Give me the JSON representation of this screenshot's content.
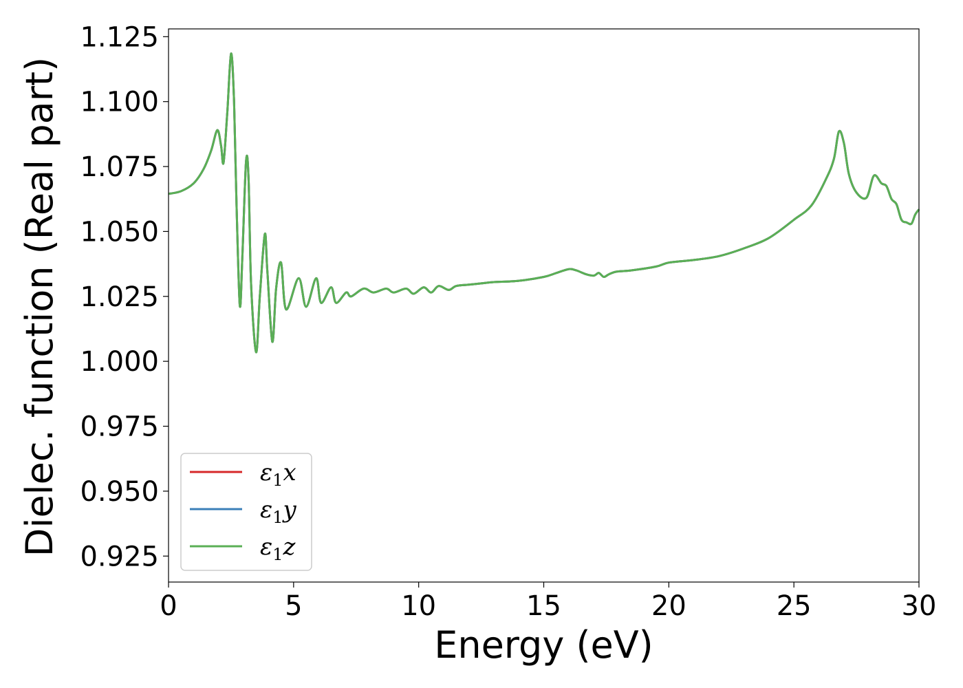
{
  "chart_data": {
    "type": "line",
    "xlabel": "Energy (eV)",
    "ylabel": "Dielec. function (Real part)",
    "xlim": [
      0,
      30
    ],
    "ylim": [
      0.915,
      1.128
    ],
    "xticks": [
      0,
      5,
      10,
      15,
      20,
      25,
      30
    ],
    "xtick_labels": [
      "0",
      "5",
      "10",
      "15",
      "20",
      "25",
      "30"
    ],
    "yticks": [
      0.925,
      0.95,
      0.975,
      1.0,
      1.025,
      1.05,
      1.075,
      1.1,
      1.125
    ],
    "ytick_labels": [
      "0.925",
      "0.950",
      "0.975",
      "1.000",
      "1.025",
      "1.050",
      "1.075",
      "1.100",
      "1.125"
    ],
    "grid": false,
    "legend_position": "lower-left",
    "legend": [
      {
        "symbol": "ε",
        "sub": "1",
        "axis": "x",
        "color": "#d62728"
      },
      {
        "symbol": "ε",
        "sub": "1",
        "axis": "y",
        "color": "#3a7fb8"
      },
      {
        "symbol": "ε",
        "sub": "1",
        "axis": "z",
        "color": "#5aaf55"
      }
    ],
    "x": [
      0,
      0.5,
      1.0,
      1.4,
      1.7,
      1.95,
      2.1,
      2.2,
      2.35,
      2.5,
      2.62,
      2.72,
      2.85,
      2.95,
      3.1,
      3.2,
      3.3,
      3.5,
      3.65,
      3.85,
      3.95,
      4.15,
      4.3,
      4.5,
      4.7,
      5.2,
      5.5,
      5.9,
      6.1,
      6.5,
      6.7,
      7.1,
      7.3,
      7.8,
      8.2,
      8.7,
      9.0,
      9.5,
      9.8,
      10.2,
      10.5,
      10.8,
      11.2,
      11.5,
      12.0,
      12.5,
      13.0,
      14.0,
      15.0,
      15.5,
      16.0,
      16.3,
      16.7,
      17.0,
      17.2,
      17.4,
      17.6,
      17.9,
      18.5,
      19.5,
      20.0,
      21.0,
      22.0,
      23.0,
      24.0,
      25.0,
      25.7,
      26.3,
      26.6,
      26.8,
      27.0,
      27.2,
      27.5,
      27.9,
      28.2,
      28.5,
      28.7,
      28.9,
      29.1,
      29.3,
      29.5,
      29.7,
      29.85,
      30.0
    ],
    "series": [
      {
        "name": "ε1x",
        "color": "#d62728",
        "values": [
          1.0645,
          1.0655,
          1.0685,
          1.074,
          1.081,
          1.089,
          1.083,
          1.0765,
          1.096,
          1.1185,
          1.1,
          1.06,
          1.0215,
          1.04,
          1.077,
          1.07,
          1.03,
          1.0035,
          1.025,
          1.049,
          1.035,
          1.0075,
          1.028,
          1.038,
          1.02,
          1.032,
          1.021,
          1.032,
          1.0225,
          1.0285,
          1.0225,
          1.0265,
          1.025,
          1.028,
          1.0265,
          1.028,
          1.0265,
          1.028,
          1.026,
          1.0285,
          1.0265,
          1.029,
          1.0275,
          1.029,
          1.0295,
          1.03,
          1.0305,
          1.031,
          1.0325,
          1.034,
          1.0355,
          1.035,
          1.0335,
          1.033,
          1.034,
          1.0325,
          1.0335,
          1.0345,
          1.035,
          1.0365,
          1.038,
          1.039,
          1.0405,
          1.0435,
          1.0475,
          1.0545,
          1.06,
          1.0705,
          1.078,
          1.0885,
          1.084,
          1.072,
          1.065,
          1.063,
          1.0715,
          1.0685,
          1.0675,
          1.0625,
          1.0605,
          1.0545,
          1.0535,
          1.053,
          1.0565,
          1.0585
        ]
      },
      {
        "name": "ε1y",
        "color": "#3a7fb8",
        "values": [
          1.0645,
          1.0655,
          1.0685,
          1.074,
          1.081,
          1.089,
          1.083,
          1.0765,
          1.096,
          1.1185,
          1.1,
          1.06,
          1.0215,
          1.04,
          1.077,
          1.07,
          1.03,
          1.0035,
          1.025,
          1.049,
          1.035,
          1.0075,
          1.028,
          1.038,
          1.02,
          1.032,
          1.021,
          1.032,
          1.0225,
          1.0285,
          1.0225,
          1.0265,
          1.025,
          1.028,
          1.0265,
          1.028,
          1.0265,
          1.028,
          1.026,
          1.0285,
          1.0265,
          1.029,
          1.0275,
          1.029,
          1.0295,
          1.03,
          1.0305,
          1.031,
          1.0325,
          1.034,
          1.0355,
          1.035,
          1.0335,
          1.033,
          1.034,
          1.0325,
          1.0335,
          1.0345,
          1.035,
          1.0365,
          1.038,
          1.039,
          1.0405,
          1.0435,
          1.0475,
          1.0545,
          1.06,
          1.0705,
          1.078,
          1.0885,
          1.084,
          1.072,
          1.065,
          1.063,
          1.0715,
          1.0685,
          1.0675,
          1.0625,
          1.0605,
          1.0545,
          1.0535,
          1.053,
          1.0565,
          1.0585
        ]
      },
      {
        "name": "ε1z",
        "color": "#5aaf55",
        "values": [
          1.0645,
          1.0655,
          1.0685,
          1.074,
          1.081,
          1.089,
          1.083,
          1.0765,
          1.096,
          1.1185,
          1.1,
          1.06,
          1.0215,
          1.04,
          1.077,
          1.07,
          1.03,
          1.0035,
          1.025,
          1.049,
          1.035,
          1.0075,
          1.028,
          1.038,
          1.02,
          1.032,
          1.021,
          1.032,
          1.0225,
          1.0285,
          1.0225,
          1.0265,
          1.025,
          1.028,
          1.0265,
          1.028,
          1.0265,
          1.028,
          1.026,
          1.0285,
          1.0265,
          1.029,
          1.0275,
          1.029,
          1.0295,
          1.03,
          1.0305,
          1.031,
          1.0325,
          1.034,
          1.0355,
          1.035,
          1.0335,
          1.033,
          1.034,
          1.0325,
          1.0335,
          1.0345,
          1.035,
          1.0365,
          1.038,
          1.039,
          1.0405,
          1.0435,
          1.0475,
          1.0545,
          1.06,
          1.0705,
          1.078,
          1.0885,
          1.084,
          1.072,
          1.065,
          1.063,
          1.0715,
          1.0685,
          1.0675,
          1.0625,
          1.0605,
          1.0545,
          1.0535,
          1.053,
          1.0565,
          1.0585
        ]
      }
    ]
  }
}
